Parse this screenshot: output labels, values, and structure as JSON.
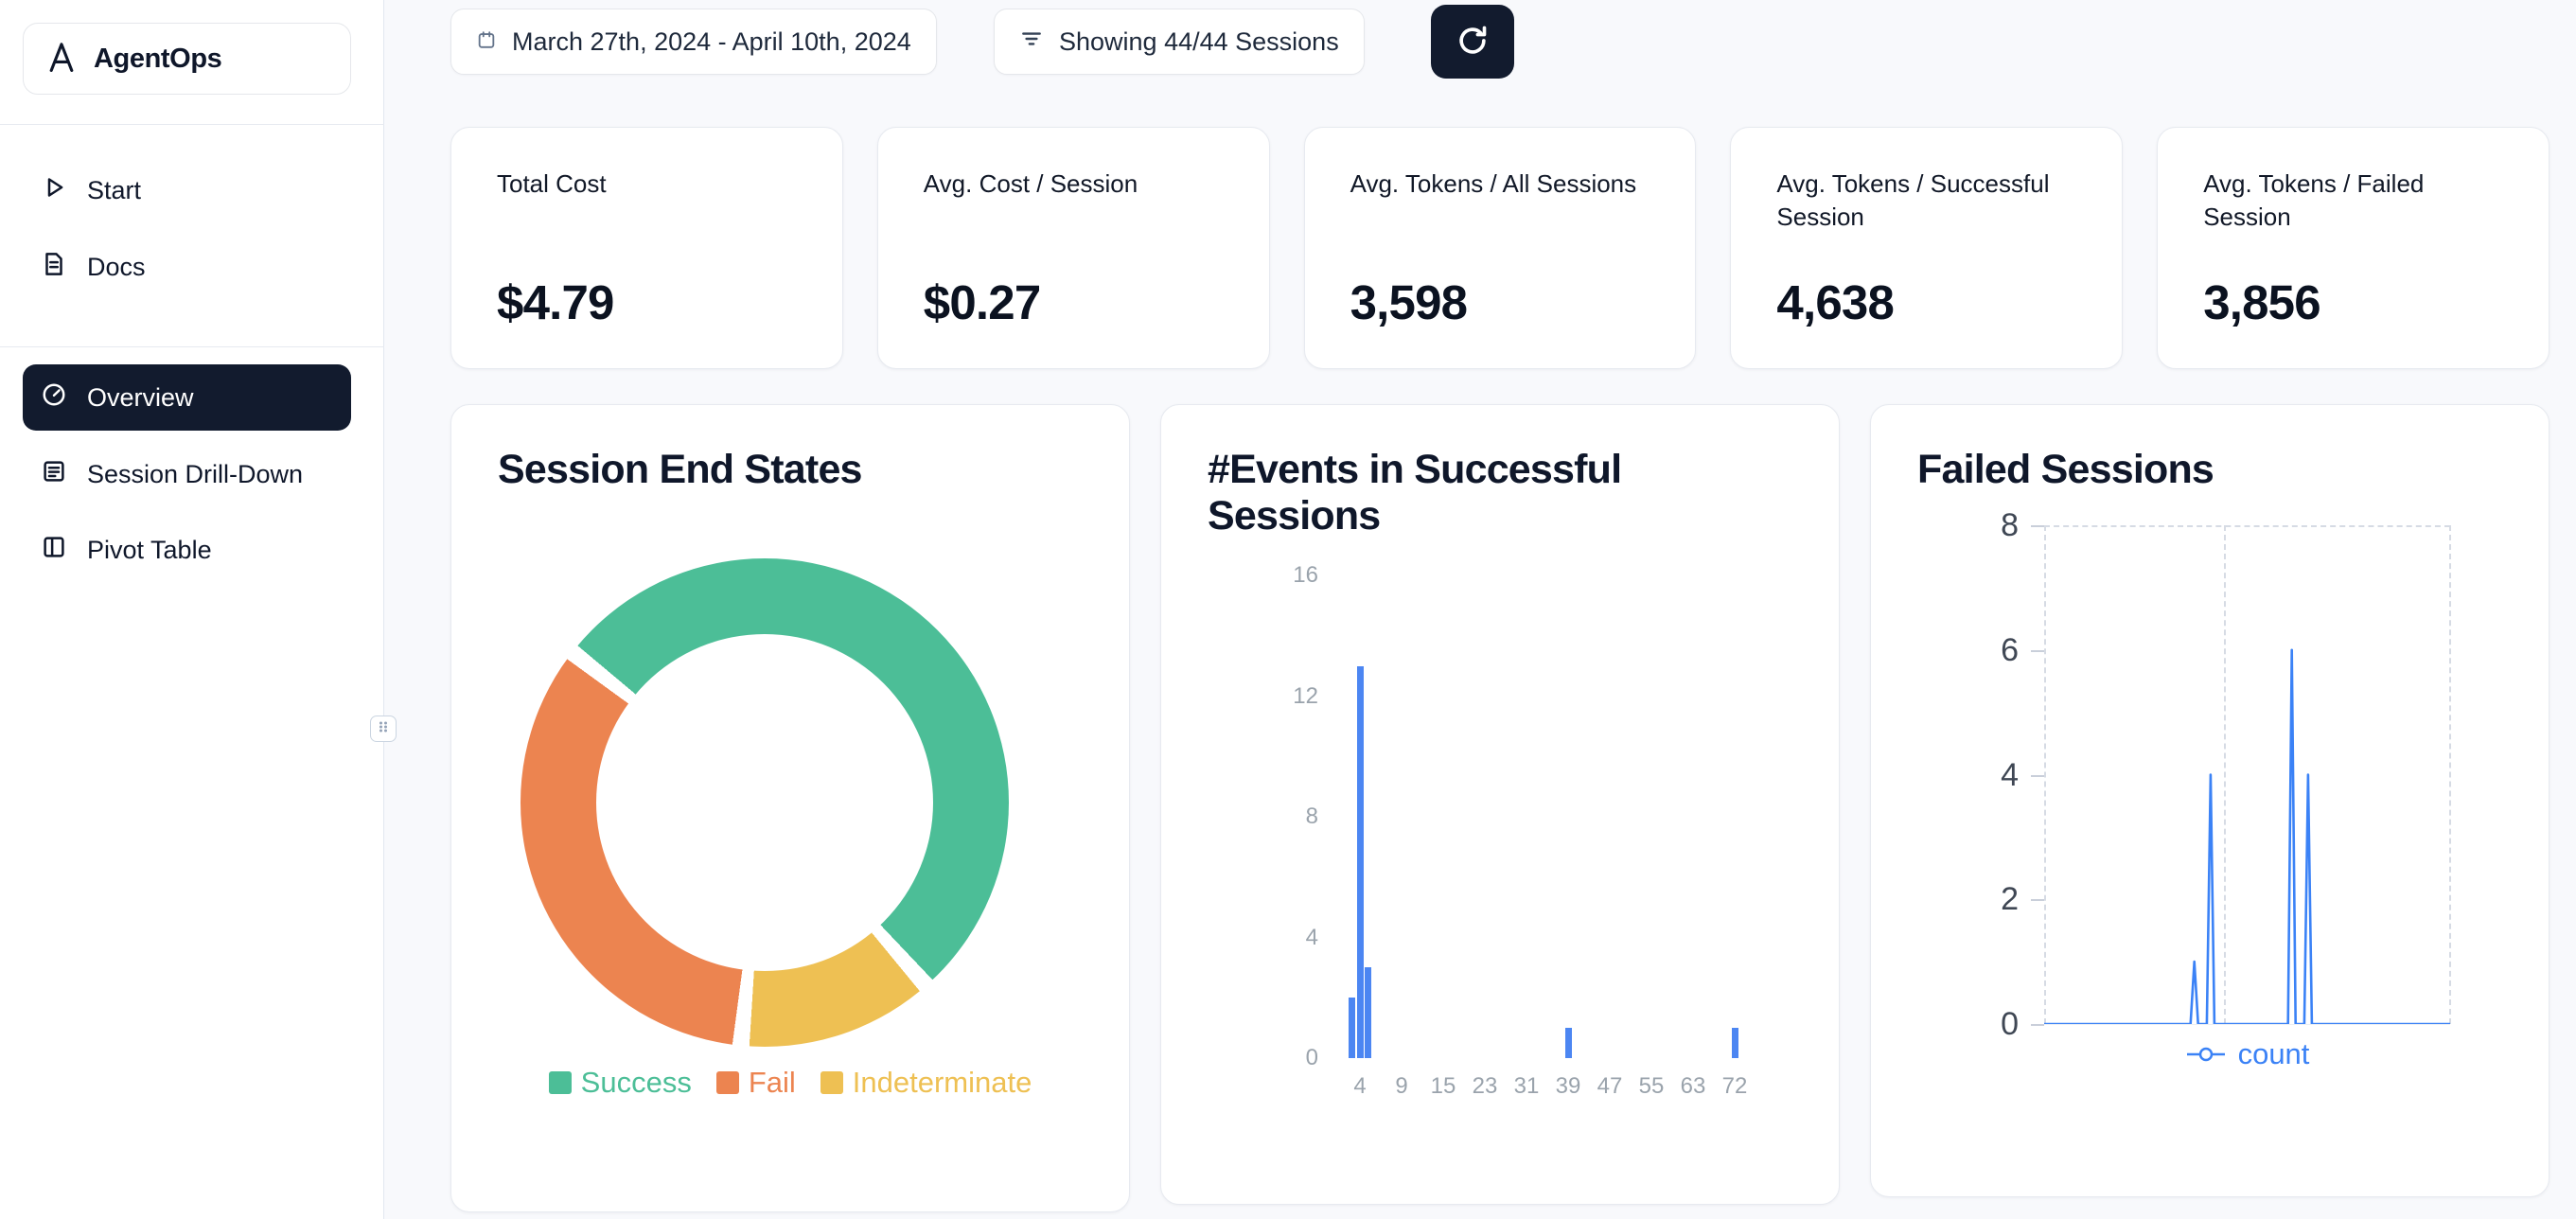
{
  "app": {
    "title": "AgentOps"
  },
  "sidebar": {
    "logo_text": "AgentOps",
    "top_items": [
      {
        "label": "Start",
        "icon": "play-icon"
      },
      {
        "label": "Docs",
        "icon": "docs-icon"
      }
    ],
    "main_items": [
      {
        "label": "Overview",
        "icon": "gauge-icon",
        "active": true
      },
      {
        "label": "Session Drill-Down",
        "icon": "report-icon",
        "active": false
      },
      {
        "label": "Pivot Table",
        "icon": "columns-icon",
        "active": false
      }
    ]
  },
  "topbar": {
    "date_range": "March 27th, 2024 - April 10th, 2024",
    "filter_label": "Showing 44/44 Sessions",
    "refresh_icon": "refresh-icon"
  },
  "stats": [
    {
      "label": "Total Cost",
      "value": "$4.79"
    },
    {
      "label": "Avg. Cost / Session",
      "value": "$0.27"
    },
    {
      "label": "Avg. Tokens / All Sessions",
      "value": "3,598"
    },
    {
      "label": "Avg. Tokens / Successful Session",
      "value": "4,638"
    },
    {
      "label": "Avg. Tokens / Failed Session",
      "value": "3,856"
    }
  ],
  "colors": {
    "brand_navy": "#121b2e",
    "success_green": "#4cbe97",
    "fail_orange": "#ec8450",
    "indeterminate_yellow": "#eec053",
    "chart_blue": "#4c86f2",
    "page_background": "#f8f9fc"
  },
  "chart_data": [
    {
      "type": "pie",
      "donut": true,
      "title": "Session End States",
      "segments": [
        {
          "label": "Success",
          "value": 52,
          "color": "#4cbe97"
        },
        {
          "label": "Indeterminate",
          "value": 12,
          "color": "#eec053"
        },
        {
          "label": "Fail",
          "value": 33,
          "color": "#ec8450"
        }
      ],
      "legend": [
        {
          "label": "Success",
          "color": "#4cbe97"
        },
        {
          "label": "Fail",
          "color": "#ec8450"
        },
        {
          "label": "Indeterminate",
          "color": "#eec053"
        }
      ],
      "start_angle_deg": -50,
      "gap_deg": 4,
      "legend_position": "bottom",
      "units": "percent (estimated from arc angles)"
    },
    {
      "type": "bar",
      "title": "#Events in Successful Sessions",
      "xlabel": "",
      "ylabel": "",
      "x_ticks": [
        4,
        9,
        15,
        23,
        31,
        39,
        47,
        55,
        63,
        72
      ],
      "y_ticks": [
        0,
        4,
        8,
        12,
        16
      ],
      "ylim": [
        0,
        16
      ],
      "bars": [
        {
          "x": 3,
          "count": 2
        },
        {
          "x": 4,
          "count": 13
        },
        {
          "x": 5,
          "count": 3
        },
        {
          "x": 39,
          "count": 1
        },
        {
          "x": 72,
          "count": 1
        }
      ],
      "bar_color": "#4c86f2",
      "grid": false
    },
    {
      "type": "line",
      "title": "Failed Sessions",
      "y_ticks": [
        0,
        2,
        4,
        6,
        8
      ],
      "ylim": [
        0,
        8
      ],
      "series": [
        {
          "name": "count",
          "color": "#3b82f6",
          "baseline": 0,
          "spikes": [
            {
              "x_frac": 0.37,
              "y": 1
            },
            {
              "x_frac": 0.41,
              "y": 4
            },
            {
              "x_frac": 0.61,
              "y": 6
            },
            {
              "x_frac": 0.65,
              "y": 4
            }
          ]
        }
      ],
      "grid": "dashed-border",
      "legend_position": "bottom"
    }
  ]
}
